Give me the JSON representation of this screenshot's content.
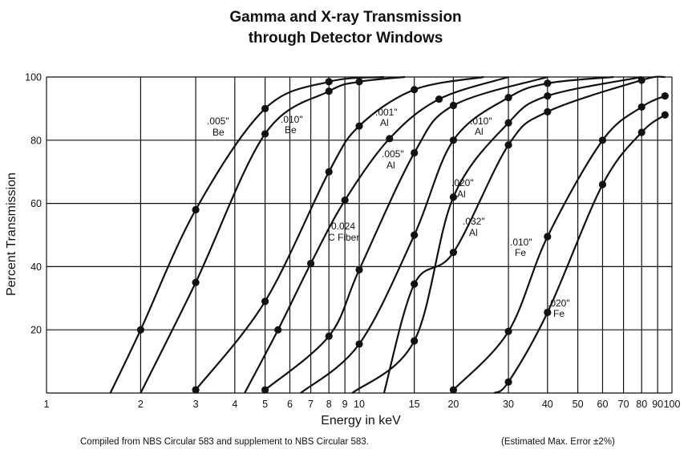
{
  "chart_data": {
    "type": "line",
    "title_lines": [
      "Gamma and X-ray Transmission",
      "through Detector Windows"
    ],
    "xlabel": "Energy in keV",
    "ylabel": "Percent Transmission",
    "footer_left": "Compiled from NBS Circular 583 and supplement to NBS Circular 583.",
    "footer_right": "(Estimated Max. Error ±2%)",
    "x_scale": "log",
    "xlim": [
      1,
      100
    ],
    "ylim": [
      0,
      100
    ],
    "x_ticks": [
      {
        "value": 1,
        "label": "1"
      },
      {
        "value": 2,
        "label": "2"
      },
      {
        "value": 3,
        "label": "3"
      },
      {
        "value": 4,
        "label": "4"
      },
      {
        "value": 5,
        "label": "5"
      },
      {
        "value": 6,
        "label": "6"
      },
      {
        "value": 7,
        "label": "7"
      },
      {
        "value": 8,
        "label": "8"
      },
      {
        "value": 9,
        "label": "9"
      },
      {
        "value": 10,
        "label": "10"
      },
      {
        "value": 15,
        "label": "15"
      },
      {
        "value": 20,
        "label": "20"
      },
      {
        "value": 30,
        "label": "30"
      },
      {
        "value": 40,
        "label": "40"
      },
      {
        "value": 50,
        "label": "50"
      },
      {
        "value": 60,
        "label": "60"
      },
      {
        "value": 70,
        "label": "70"
      },
      {
        "value": 80,
        "label": "80"
      },
      {
        "value": 90,
        "label": "90"
      },
      {
        "value": 100,
        "label": "100"
      }
    ],
    "y_ticks": [
      {
        "value": 20,
        "label": "20"
      },
      {
        "value": 40,
        "label": "40"
      },
      {
        "value": 60,
        "label": "60"
      },
      {
        "value": 80,
        "label": "80"
      },
      {
        "value": 100,
        "label": "100"
      }
    ],
    "grid": true,
    "series": [
      {
        "name": ".005\" Be",
        "label_lines": [
          ".005\"",
          "Be"
        ],
        "points": [
          [
            1.6,
            0
          ],
          [
            2,
            20
          ],
          [
            3,
            58
          ],
          [
            5,
            90
          ],
          [
            8,
            98.5
          ],
          [
            12,
            100
          ]
        ]
      },
      {
        "name": ".010\" Be",
        "label_lines": [
          ".010\"",
          "Be"
        ],
        "points": [
          [
            2,
            0
          ],
          [
            3,
            35
          ],
          [
            5,
            82
          ],
          [
            8,
            95.5
          ],
          [
            10,
            98.5
          ],
          [
            14,
            100
          ]
        ]
      },
      {
        "name": ".001\" Al",
        "label_lines": [
          ".001\"",
          "Al"
        ],
        "points": [
          [
            3,
            1
          ],
          [
            5,
            29
          ],
          [
            8,
            70
          ],
          [
            10,
            84.5
          ],
          [
            15,
            96
          ],
          [
            25,
            100
          ]
        ]
      },
      {
        "name": "0.024 C Fiber",
        "label_lines": [
          "0.024",
          "C Fiber"
        ],
        "points": [
          [
            4.3,
            0
          ],
          [
            5.5,
            20
          ],
          [
            7,
            41
          ],
          [
            9,
            61
          ],
          [
            12.5,
            80.5
          ],
          [
            18,
            93
          ],
          [
            30,
            100
          ]
        ]
      },
      {
        "name": ".005\" Al",
        "label_lines": [
          ".005\"",
          "Al"
        ],
        "points": [
          [
            5,
            1
          ],
          [
            8,
            18
          ],
          [
            10,
            39
          ],
          [
            15,
            76
          ],
          [
            20,
            91
          ],
          [
            40,
            100
          ]
        ]
      },
      {
        "name": ".010\" Al",
        "label_lines": [
          ".010\"",
          "Al"
        ],
        "points": [
          [
            6.5,
            0
          ],
          [
            10,
            15.5
          ],
          [
            15,
            50
          ],
          [
            20,
            80
          ],
          [
            30,
            93.5
          ],
          [
            40,
            98
          ],
          [
            65,
            100
          ]
        ]
      },
      {
        "name": ".020\" Al",
        "label_lines": [
          ".020\"",
          "Al"
        ],
        "points": [
          [
            9.5,
            0
          ],
          [
            15,
            16.5
          ],
          [
            20,
            62
          ],
          [
            30,
            85.5
          ],
          [
            40,
            94
          ],
          [
            80,
            100
          ]
        ]
      },
      {
        "name": ".032\" Al",
        "label_lines": [
          ".032\"",
          "Al"
        ],
        "points": [
          [
            12,
            0
          ],
          [
            15,
            34.5
          ],
          [
            20,
            44.5
          ],
          [
            30,
            78.5
          ],
          [
            40,
            89
          ],
          [
            80,
            99
          ],
          [
            95,
            100
          ]
        ]
      },
      {
        "name": ".010\" Fe",
        "label_lines": [
          ".010\"",
          "Fe"
        ],
        "points": [
          [
            20,
            1
          ],
          [
            30,
            19.5
          ],
          [
            40,
            49.5
          ],
          [
            60,
            80
          ],
          [
            80,
            90.5
          ],
          [
            95,
            94
          ]
        ]
      },
      {
        "name": ".020\" Fe",
        "label_lines": [
          ".020\"",
          "Fe"
        ],
        "points": [
          [
            27,
            0
          ],
          [
            30,
            3.5
          ],
          [
            40,
            25.5
          ],
          [
            60,
            66
          ],
          [
            80,
            82.5
          ],
          [
            95,
            88
          ]
        ]
      }
    ]
  }
}
